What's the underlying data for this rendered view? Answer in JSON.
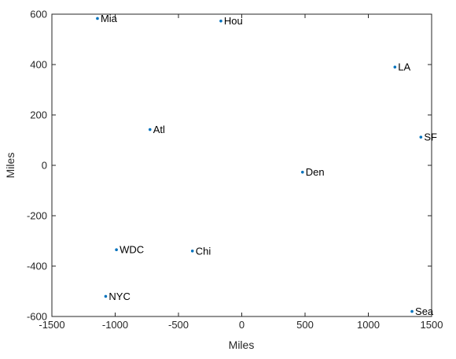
{
  "chart_data": {
    "type": "scatter",
    "title": "",
    "xlabel": "Miles",
    "ylabel": "Miles",
    "xlim": [
      -1500,
      1500
    ],
    "ylim": [
      -600,
      600
    ],
    "xticks": [
      -1500,
      -1000,
      -500,
      0,
      500,
      1000,
      1500
    ],
    "yticks": [
      600,
      400,
      200,
      0,
      -200,
      -400,
      -600
    ],
    "xtick_labels": [
      "-1500",
      "-1000",
      "-500",
      "0",
      "500",
      "1000",
      "1500"
    ],
    "ytick_labels": [
      "600",
      "400",
      "200",
      "0",
      "-200",
      "-400",
      "-600"
    ],
    "grid": false,
    "marker_color": "#0072BD",
    "points": [
      {
        "label": "Mia",
        "x": -1140,
        "y": 583
      },
      {
        "label": "Hou",
        "x": -165,
        "y": 573
      },
      {
        "label": "LA",
        "x": 1210,
        "y": 390
      },
      {
        "label": "Atl",
        "x": -725,
        "y": 142
      },
      {
        "label": "SF",
        "x": 1415,
        "y": 112
      },
      {
        "label": "Den",
        "x": 480,
        "y": -27
      },
      {
        "label": "WDC",
        "x": -990,
        "y": -335
      },
      {
        "label": "Chi",
        "x": -390,
        "y": -340
      },
      {
        "label": "NYC",
        "x": -1075,
        "y": -520
      },
      {
        "label": "Sea",
        "x": 1345,
        "y": -580
      }
    ]
  }
}
